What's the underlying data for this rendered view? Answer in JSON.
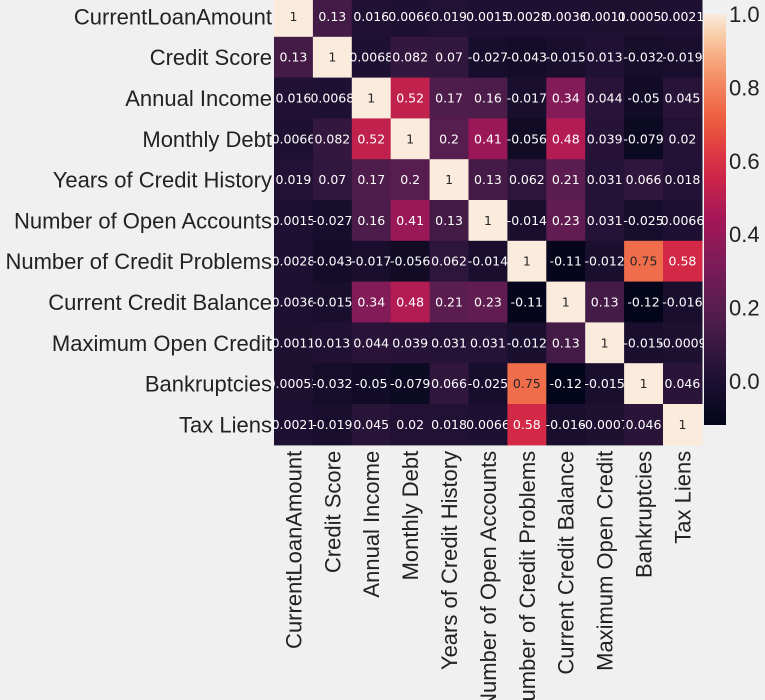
{
  "chart_data": {
    "type": "heatmap",
    "title": "",
    "xlabel": "",
    "ylabel": "",
    "rows": [
      "CurrentLoanAmount",
      "Credit Score",
      "Annual Income",
      "Monthly Debt",
      "Years of Credit History",
      "Number of Open Accounts",
      "Number of Credit Problems",
      "Current Credit Balance",
      "Maximum Open Credit",
      "Bankruptcies",
      "Tax Liens"
    ],
    "columns": [
      "CurrentLoanAmount",
      "Credit Score",
      "Annual Income",
      "Monthly Debt",
      "Years of Credit History",
      "Number of Open Accounts",
      "Number of Credit Problems",
      "Current Credit Balance",
      "Maximum Open Credit",
      "Bankruptcies",
      "Tax Liens"
    ],
    "values": [
      [
        1,
        0.13,
        0.016,
        0.0066,
        0.019,
        0.0015,
        0.0028,
        0.0036,
        0.0011,
        0.00052,
        0.0021
      ],
      [
        0.13,
        1,
        0.0068,
        0.082,
        0.07,
        -0.027,
        -0.043,
        -0.015,
        0.013,
        -0.032,
        -0.019
      ],
      [
        0.016,
        0.0068,
        1,
        0.52,
        0.17,
        0.16,
        -0.017,
        0.34,
        0.044,
        -0.05,
        0.045
      ],
      [
        0.0066,
        0.082,
        0.52,
        1,
        0.2,
        0.41,
        -0.056,
        0.48,
        0.039,
        -0.079,
        0.02
      ],
      [
        0.019,
        0.07,
        0.17,
        0.2,
        1,
        0.13,
        0.062,
        0.21,
        0.031,
        0.066,
        0.018
      ],
      [
        0.0015,
        -0.027,
        0.16,
        0.41,
        0.13,
        1,
        -0.014,
        0.23,
        0.031,
        -0.025,
        0.0066
      ],
      [
        0.0028,
        -0.043,
        -0.017,
        -0.056,
        0.062,
        -0.014,
        1,
        -0.11,
        -0.012,
        0.75,
        0.58
      ],
      [
        0.0036,
        -0.015,
        0.34,
        0.48,
        0.21,
        0.23,
        -0.11,
        1,
        0.13,
        -0.12,
        -0.016
      ],
      [
        0.0011,
        0.013,
        0.044,
        0.039,
        0.031,
        0.031,
        -0.012,
        0.13,
        1,
        -0.015,
        -0.0009
      ],
      [
        0.00052,
        -0.032,
        -0.05,
        -0.079,
        0.066,
        -0.025,
        0.75,
        -0.12,
        -0.015,
        1,
        0.046
      ],
      [
        0.0021,
        -0.019,
        0.045,
        0.02,
        0.018,
        0.0066,
        0.58,
        -0.016,
        -0.0007,
        0.046,
        1
      ]
    ],
    "annotations": [
      [
        "1",
        "0.13",
        "0.016",
        "0.0066",
        "0.019",
        "0.0015",
        "0.0028",
        "0.0036",
        "0.0011",
        "0.00052",
        "0.0021"
      ],
      [
        "0.13",
        "1",
        "0.0068",
        "0.082",
        "0.07",
        "-0.027",
        "-0.043",
        "-0.015",
        "0.013",
        "-0.032",
        "-0.019"
      ],
      [
        "0.016",
        "0.0068",
        "1",
        "0.52",
        "0.17",
        "0.16",
        "-0.017",
        "0.34",
        "0.044",
        "-0.05",
        "0.045"
      ],
      [
        "0.0066",
        "0.082",
        "0.52",
        "1",
        "0.2",
        "0.41",
        "-0.056",
        "0.48",
        "0.039",
        "-0.079",
        "0.02"
      ],
      [
        "0.019",
        "0.07",
        "0.17",
        "0.2",
        "1",
        "0.13",
        "0.062",
        "0.21",
        "0.031",
        "0.066",
        "0.018"
      ],
      [
        "0.0015",
        "-0.027",
        "0.16",
        "0.41",
        "0.13",
        "1",
        "-0.014",
        "0.23",
        "0.031",
        "-0.025",
        "0.0066"
      ],
      [
        "0.0028",
        "-0.043",
        "-0.017",
        "-0.056",
        "0.062",
        "-0.014",
        "1",
        "-0.11",
        "-0.012",
        "0.75",
        "0.58"
      ],
      [
        "0.0036",
        "-0.015",
        "0.34",
        "0.48",
        "0.21",
        "0.23",
        "-0.11",
        "1",
        "0.13",
        "-0.12",
        "-0.016"
      ],
      [
        "0.0011",
        "0.013",
        "0.044",
        "0.039",
        "0.031",
        "0.031",
        "-0.012",
        "0.13",
        "1",
        "-0.015",
        "-0.0009"
      ],
      [
        "0.00052",
        "-0.032",
        "-0.05",
        "-0.079",
        "0.066",
        "-0.025",
        "0.75",
        "-0.12",
        "-0.015",
        "1",
        "0.046"
      ],
      [
        "0.0021",
        "-0.019",
        "0.045",
        "0.02",
        "0.018",
        "0.0066",
        "0.58",
        "-0.016",
        "-0.0007",
        "0.046",
        "1"
      ]
    ],
    "colorbar": {
      "range": [
        -0.12,
        1.0
      ],
      "ticks": [
        0.0,
        0.2,
        0.4,
        0.6,
        0.8,
        1.0
      ],
      "tick_labels": [
        "0.0",
        "0.2",
        "0.4",
        "0.6",
        "0.8",
        "1.0"
      ],
      "colormap": "rocket"
    },
    "grid": false,
    "legend": "colorbar-right"
  }
}
